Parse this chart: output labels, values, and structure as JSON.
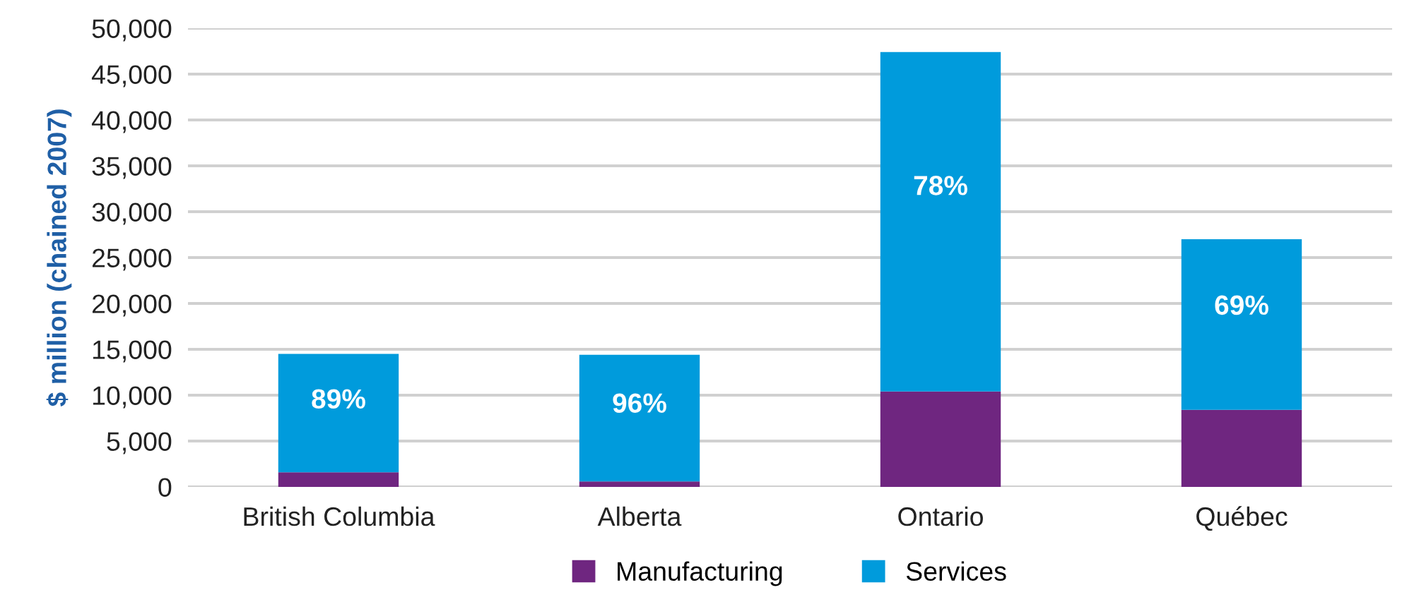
{
  "chart_data": {
    "type": "bar",
    "stacked": true,
    "ylabel": "$ million (chained 2007)",
    "categories": [
      "British Columbia",
      "Alberta",
      "Ontario",
      "Québec"
    ],
    "series": [
      {
        "name": "Manufacturing",
        "color": "#6f2680",
        "values": [
          1600,
          600,
          10400,
          8400
        ]
      },
      {
        "name": "Services",
        "color": "#009bdc",
        "values": [
          12900,
          13800,
          37000,
          18600
        ]
      }
    ],
    "annotations": [
      "89%",
      "96%",
      "78%",
      "69%"
    ],
    "ylim": [
      0,
      50000
    ],
    "yticks": [
      {
        "value": 0,
        "label": "0"
      },
      {
        "value": 5000,
        "label": "5,000"
      },
      {
        "value": 10000,
        "label": "10,000"
      },
      {
        "value": 15000,
        "label": "15,000"
      },
      {
        "value": 20000,
        "label": "20,000"
      },
      {
        "value": 25000,
        "label": "25,000"
      },
      {
        "value": 30000,
        "label": "30,000"
      },
      {
        "value": 35000,
        "label": "35,000"
      },
      {
        "value": 40000,
        "label": "40,000"
      },
      {
        "value": 45000,
        "label": "45,000"
      },
      {
        "value": 50000,
        "label": "50,000"
      }
    ],
    "grid": "y",
    "legend": "bottom"
  }
}
